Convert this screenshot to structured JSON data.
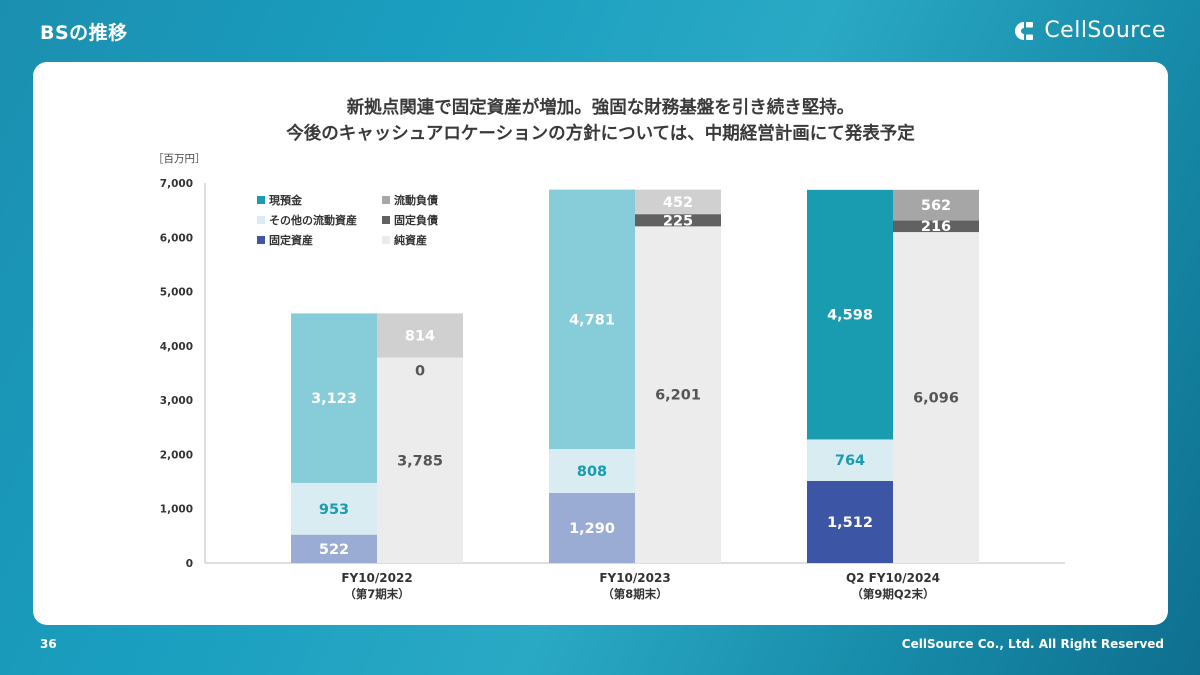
{
  "header": {
    "title": "BSの推移"
  },
  "brand": {
    "logo_text": "CellSource",
    "logo_icon": "cellsource-logo-icon"
  },
  "headline": {
    "line1": "新拠点関連で固定資産が増加。強固な財務基盤を引き続き堅持。",
    "line2": "今後のキャッシュアロケーションの方針については、中期経営計画にて発表予定"
  },
  "footer": {
    "page_number": "36",
    "copyright": "CellSource Co., Ltd. All Right Reserved"
  },
  "colors": {
    "cash": "#1a9cb0",
    "cash_light": "#86cdd9",
    "other_current": "#d8ecf1",
    "fixed": "#3c55a5",
    "fixed_light": "#9aabd4",
    "current_liab": "#a6a6a6",
    "current_liab_light": "#d0d0d0",
    "fixed_liab": "#616161",
    "net_assets": "#ececec",
    "label_teal": "#1a9cb0",
    "label_gray": "#555555"
  },
  "chart_data": {
    "type": "bar",
    "stacked": true,
    "unit_label": "［百万円］",
    "ylim": [
      0,
      7000
    ],
    "yticks": [
      "0",
      "1,000",
      "2,000",
      "3,000",
      "4,000",
      "5,000",
      "6,000",
      "7,000"
    ],
    "grid": false,
    "legend_position": "top-left",
    "legend": [
      {
        "name": "現預金",
        "key": "cash"
      },
      {
        "name": "流動負債",
        "key": "current_liab"
      },
      {
        "name": "その他の流動資産",
        "key": "other_current"
      },
      {
        "name": "固定負債",
        "key": "fixed_liab"
      },
      {
        "name": "固定資産",
        "key": "fixed"
      },
      {
        "name": "純資産",
        "key": "net_assets"
      }
    ],
    "categories": [
      {
        "label": "FY10/2022",
        "sub": "（第7期末）"
      },
      {
        "label": "FY10/2023",
        "sub": "（第8期末）"
      },
      {
        "label": "Q2 FY10/2024",
        "sub": "（第9期Q2末）"
      }
    ],
    "assets": [
      {
        "fixed": 522,
        "other_current": 953,
        "cash": 3123,
        "labels": [
          "522",
          "953",
          "3,123"
        ]
      },
      {
        "fixed": 1290,
        "other_current": 808,
        "cash": 4781,
        "labels": [
          "1,290",
          "808",
          "4,781"
        ]
      },
      {
        "fixed": 1512,
        "other_current": 764,
        "cash": 4598,
        "labels": [
          "1,512",
          "764",
          "4,598"
        ]
      }
    ],
    "liabilities": [
      {
        "net_assets": 3785,
        "fixed_liab": 0,
        "current_liab": 814,
        "labels": [
          "3,785",
          "0",
          "814"
        ]
      },
      {
        "net_assets": 6201,
        "fixed_liab": 225,
        "current_liab": 452,
        "labels": [
          "6,201",
          "225",
          "452"
        ]
      },
      {
        "net_assets": 6096,
        "fixed_liab": 216,
        "current_liab": 562,
        "labels": [
          "6,096",
          "216",
          "562"
        ]
      }
    ]
  }
}
